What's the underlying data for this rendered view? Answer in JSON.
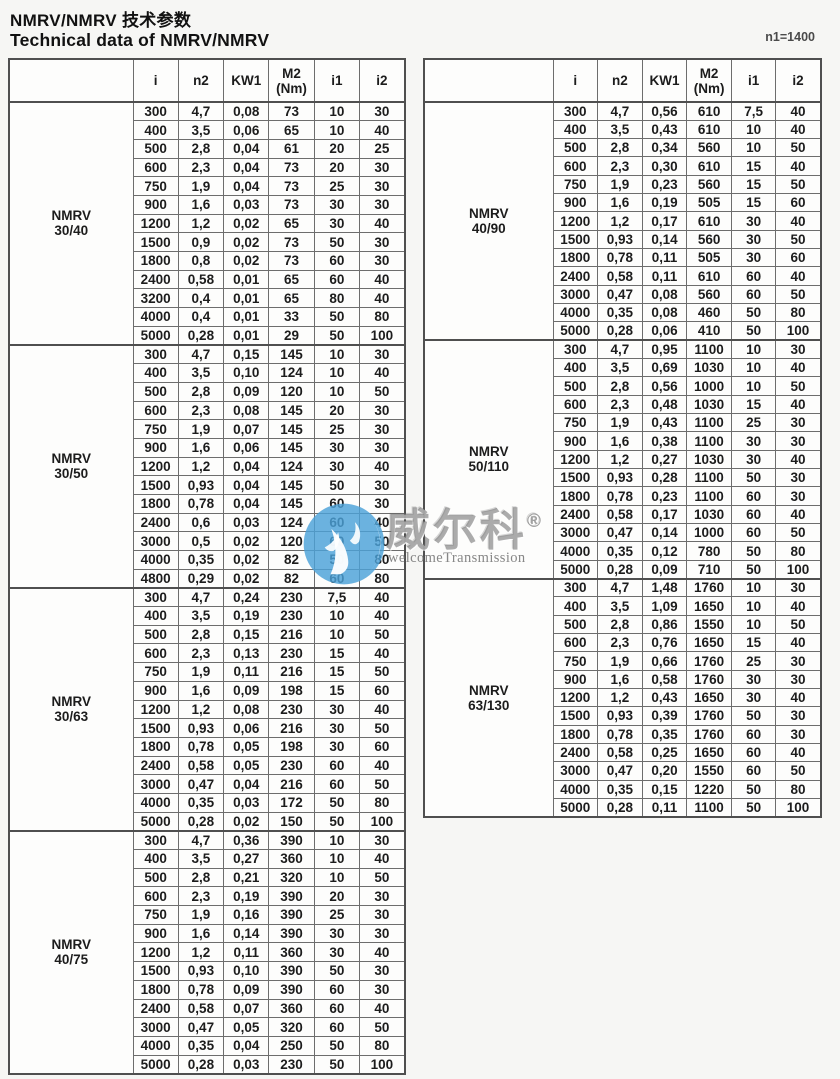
{
  "title_zh": "NMRV/NMRV 技术参数",
  "title_en": "Technical data of NMRV/NMRV",
  "note": "n1=1400",
  "columns": [
    {
      "id": "i",
      "lines": [
        "i"
      ]
    },
    {
      "id": "n2",
      "lines": [
        "n2"
      ]
    },
    {
      "id": "kw1",
      "lines": [
        "KW1"
      ]
    },
    {
      "id": "m2",
      "lines": [
        "M2",
        "(Nm)"
      ]
    },
    {
      "id": "i1",
      "lines": [
        "i1"
      ]
    },
    {
      "id": "i2",
      "lines": [
        "i2"
      ]
    }
  ],
  "watermark": {
    "brand_zh": "威尔科",
    "registered": "®",
    "brand_en": "welcomeTransmission",
    "logo_color": "#4ba1d8",
    "text_color": "#7a7a7a"
  },
  "tables": [
    {
      "side": "left",
      "sections": [
        {
          "model": "NMRV",
          "size": "30/40",
          "rows": [
            [
              "300",
              "4,7",
              "0,08",
              "73",
              "10",
              "30"
            ],
            [
              "400",
              "3,5",
              "0,06",
              "65",
              "10",
              "40"
            ],
            [
              "500",
              "2,8",
              "0,04",
              "61",
              "20",
              "25"
            ],
            [
              "600",
              "2,3",
              "0,04",
              "73",
              "20",
              "30"
            ],
            [
              "750",
              "1,9",
              "0,04",
              "73",
              "25",
              "30"
            ],
            [
              "900",
              "1,6",
              "0,03",
              "73",
              "30",
              "30"
            ],
            [
              "1200",
              "1,2",
              "0,02",
              "65",
              "30",
              "40"
            ],
            [
              "1500",
              "0,9",
              "0,02",
              "73",
              "50",
              "30"
            ],
            [
              "1800",
              "0,8",
              "0,02",
              "73",
              "60",
              "30"
            ],
            [
              "2400",
              "0,58",
              "0,01",
              "65",
              "60",
              "40"
            ],
            [
              "3200",
              "0,4",
              "0,01",
              "65",
              "80",
              "40"
            ],
            [
              "4000",
              "0,4",
              "0,01",
              "33",
              "50",
              "80"
            ],
            [
              "5000",
              "0,28",
              "0,01",
              "29",
              "50",
              "100"
            ]
          ]
        },
        {
          "model": "NMRV",
          "size": "30/50",
          "rows": [
            [
              "300",
              "4,7",
              "0,15",
              "145",
              "10",
              "30"
            ],
            [
              "400",
              "3,5",
              "0,10",
              "124",
              "10",
              "40"
            ],
            [
              "500",
              "2,8",
              "0,09",
              "120",
              "10",
              "50"
            ],
            [
              "600",
              "2,3",
              "0,08",
              "145",
              "20",
              "30"
            ],
            [
              "750",
              "1,9",
              "0,07",
              "145",
              "25",
              "30"
            ],
            [
              "900",
              "1,6",
              "0,06",
              "145",
              "30",
              "30"
            ],
            [
              "1200",
              "1,2",
              "0,04",
              "124",
              "30",
              "40"
            ],
            [
              "1500",
              "0,93",
              "0,04",
              "145",
              "50",
              "30"
            ],
            [
              "1800",
              "0,78",
              "0,04",
              "145",
              "60",
              "30"
            ],
            [
              "2400",
              "0,6",
              "0,03",
              "124",
              "60",
              "40"
            ],
            [
              "3000",
              "0,5",
              "0,02",
              "120",
              "60",
              "50"
            ],
            [
              "4000",
              "0,35",
              "0,02",
              "82",
              "50",
              "80"
            ],
            [
              "4800",
              "0,29",
              "0,02",
              "82",
              "60",
              "80"
            ]
          ]
        },
        {
          "model": "NMRV",
          "size": "30/63",
          "rows": [
            [
              "300",
              "4,7",
              "0,24",
              "230",
              "7,5",
              "40"
            ],
            [
              "400",
              "3,5",
              "0,19",
              "230",
              "10",
              "40"
            ],
            [
              "500",
              "2,8",
              "0,15",
              "216",
              "10",
              "50"
            ],
            [
              "600",
              "2,3",
              "0,13",
              "230",
              "15",
              "40"
            ],
            [
              "750",
              "1,9",
              "0,11",
              "216",
              "15",
              "50"
            ],
            [
              "900",
              "1,6",
              "0,09",
              "198",
              "15",
              "60"
            ],
            [
              "1200",
              "1,2",
              "0,08",
              "230",
              "30",
              "40"
            ],
            [
              "1500",
              "0,93",
              "0,06",
              "216",
              "30",
              "50"
            ],
            [
              "1800",
              "0,78",
              "0,05",
              "198",
              "30",
              "60"
            ],
            [
              "2400",
              "0,58",
              "0,05",
              "230",
              "60",
              "40"
            ],
            [
              "3000",
              "0,47",
              "0,04",
              "216",
              "60",
              "50"
            ],
            [
              "4000",
              "0,35",
              "0,03",
              "172",
              "50",
              "80"
            ],
            [
              "5000",
              "0,28",
              "0,02",
              "150",
              "50",
              "100"
            ]
          ]
        },
        {
          "model": "NMRV",
          "size": "40/75",
          "rows": [
            [
              "300",
              "4,7",
              "0,36",
              "390",
              "10",
              "30"
            ],
            [
              "400",
              "3,5",
              "0,27",
              "360",
              "10",
              "40"
            ],
            [
              "500",
              "2,8",
              "0,21",
              "320",
              "10",
              "50"
            ],
            [
              "600",
              "2,3",
              "0,19",
              "390",
              "20",
              "30"
            ],
            [
              "750",
              "1,9",
              "0,16",
              "390",
              "25",
              "30"
            ],
            [
              "900",
              "1,6",
              "0,14",
              "390",
              "30",
              "30"
            ],
            [
              "1200",
              "1,2",
              "0,11",
              "360",
              "30",
              "40"
            ],
            [
              "1500",
              "0,93",
              "0,10",
              "390",
              "50",
              "30"
            ],
            [
              "1800",
              "0,78",
              "0,09",
              "390",
              "60",
              "30"
            ],
            [
              "2400",
              "0,58",
              "0,07",
              "360",
              "60",
              "40"
            ],
            [
              "3000",
              "0,47",
              "0,05",
              "320",
              "60",
              "50"
            ],
            [
              "4000",
              "0,35",
              "0,04",
              "250",
              "50",
              "80"
            ],
            [
              "5000",
              "0,28",
              "0,03",
              "230",
              "50",
              "100"
            ]
          ]
        }
      ]
    },
    {
      "side": "right",
      "sections": [
        {
          "model": "NMRV",
          "size": "40/90",
          "rows": [
            [
              "300",
              "4,7",
              "0,56",
              "610",
              "7,5",
              "40"
            ],
            [
              "400",
              "3,5",
              "0,43",
              "610",
              "10",
              "40"
            ],
            [
              "500",
              "2,8",
              "0,34",
              "560",
              "10",
              "50"
            ],
            [
              "600",
              "2,3",
              "0,30",
              "610",
              "15",
              "40"
            ],
            [
              "750",
              "1,9",
              "0,23",
              "560",
              "15",
              "50"
            ],
            [
              "900",
              "1,6",
              "0,19",
              "505",
              "15",
              "60"
            ],
            [
              "1200",
              "1,2",
              "0,17",
              "610",
              "30",
              "40"
            ],
            [
              "1500",
              "0,93",
              "0,14",
              "560",
              "30",
              "50"
            ],
            [
              "1800",
              "0,78",
              "0,11",
              "505",
              "30",
              "60"
            ],
            [
              "2400",
              "0,58",
              "0,11",
              "610",
              "60",
              "40"
            ],
            [
              "3000",
              "0,47",
              "0,08",
              "560",
              "60",
              "50"
            ],
            [
              "4000",
              "0,35",
              "0,08",
              "460",
              "50",
              "80"
            ],
            [
              "5000",
              "0,28",
              "0,06",
              "410",
              "50",
              "100"
            ]
          ]
        },
        {
          "model": "NMRV",
          "size": "50/110",
          "rows": [
            [
              "300",
              "4,7",
              "0,95",
              "1100",
              "10",
              "30"
            ],
            [
              "400",
              "3,5",
              "0,69",
              "1030",
              "10",
              "40"
            ],
            [
              "500",
              "2,8",
              "0,56",
              "1000",
              "10",
              "50"
            ],
            [
              "600",
              "2,3",
              "0,48",
              "1030",
              "15",
              "40"
            ],
            [
              "750",
              "1,9",
              "0,43",
              "1100",
              "25",
              "30"
            ],
            [
              "900",
              "1,6",
              "0,38",
              "1100",
              "30",
              "30"
            ],
            [
              "1200",
              "1,2",
              "0,27",
              "1030",
              "30",
              "40"
            ],
            [
              "1500",
              "0,93",
              "0,28",
              "1100",
              "50",
              "30"
            ],
            [
              "1800",
              "0,78",
              "0,23",
              "1100",
              "60",
              "30"
            ],
            [
              "2400",
              "0,58",
              "0,17",
              "1030",
              "60",
              "40"
            ],
            [
              "3000",
              "0,47",
              "0,14",
              "1000",
              "60",
              "50"
            ],
            [
              "4000",
              "0,35",
              "0,12",
              "780",
              "50",
              "80"
            ],
            [
              "5000",
              "0,28",
              "0,09",
              "710",
              "50",
              "100"
            ]
          ]
        },
        {
          "model": "NMRV",
          "size": "63/130",
          "rows": [
            [
              "300",
              "4,7",
              "1,48",
              "1760",
              "10",
              "30"
            ],
            [
              "400",
              "3,5",
              "1,09",
              "1650",
              "10",
              "40"
            ],
            [
              "500",
              "2,8",
              "0,86",
              "1550",
              "10",
              "50"
            ],
            [
              "600",
              "2,3",
              "0,76",
              "1650",
              "15",
              "40"
            ],
            [
              "750",
              "1,9",
              "0,66",
              "1760",
              "25",
              "30"
            ],
            [
              "900",
              "1,6",
              "0,58",
              "1760",
              "30",
              "30"
            ],
            [
              "1200",
              "1,2",
              "0,43",
              "1650",
              "30",
              "40"
            ],
            [
              "1500",
              "0,93",
              "0,39",
              "1760",
              "50",
              "30"
            ],
            [
              "1800",
              "0,78",
              "0,35",
              "1760",
              "60",
              "30"
            ],
            [
              "2400",
              "0,58",
              "0,25",
              "1650",
              "60",
              "40"
            ],
            [
              "3000",
              "0,47",
              "0,20",
              "1550",
              "60",
              "50"
            ],
            [
              "4000",
              "0,35",
              "0,15",
              "1220",
              "50",
              "80"
            ],
            [
              "5000",
              "0,28",
              "0,11",
              "1100",
              "50",
              "100"
            ]
          ]
        }
      ]
    }
  ]
}
